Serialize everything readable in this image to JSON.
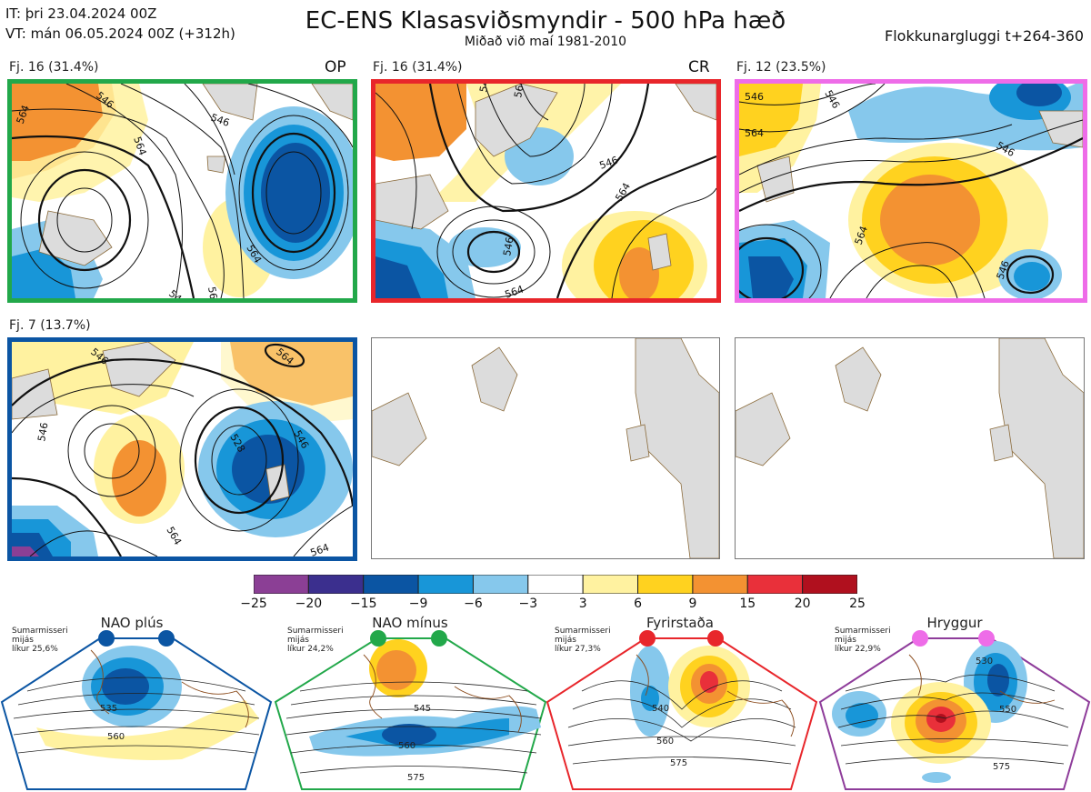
{
  "header": {
    "it_line": "IT: þri 23.04.2024 00Z",
    "vt_line": "VT: mán 06.05.2024 00Z  (+312h)",
    "title": "EC-ENS Klasasviðsmyndir - 500 hPa hæð",
    "subtitle": "Miðað við maí 1981-2010",
    "window": "Flokkunargluggi t+264-360"
  },
  "panels": [
    {
      "label": "Fj. 16 (31.4%)",
      "tag": "OP",
      "border_color": "#22a84a"
    },
    {
      "label": "Fj. 16 (31.4%)",
      "tag": "CR",
      "border_color": "#e8262b"
    },
    {
      "label": "Fj. 12 (23.5%)",
      "tag": "",
      "border_color": "#ee6ce8"
    },
    {
      "label": "Fj. 7 (13.7%)",
      "tag": "",
      "border_color": "#0b55a3"
    },
    {
      "label": "",
      "tag": "",
      "border_color": "#777777"
    },
    {
      "label": "",
      "tag": "",
      "border_color": "#777777"
    }
  ],
  "contour_labels": {
    "p1": [
      "564",
      "546",
      "564",
      "546",
      "564",
      "546",
      "564",
      "564"
    ],
    "p2": [
      "546",
      "564",
      "546",
      "546",
      "564",
      "546",
      "564"
    ],
    "p3": [
      "546",
      "546",
      "564",
      "546",
      "564",
      "546"
    ],
    "p4": [
      "546",
      "564",
      "546",
      "528",
      "564",
      "546",
      "564"
    ]
  },
  "colorbar": {
    "ticks": [
      "−25",
      "−20",
      "−15",
      "−9",
      "−6",
      "−3",
      "3",
      "6",
      "9",
      "15",
      "20",
      "25"
    ],
    "colors": [
      "#8b3f95",
      "#3b2f8e",
      "#0b55a3",
      "#1896d8",
      "#86c8ec",
      "#ffffff",
      "#fff2a0",
      "#ffd21f",
      "#f39232",
      "#e9303a",
      "#b0101e"
    ]
  },
  "regimes": [
    {
      "name": "NAO plús",
      "stats": [
        "Sumarmisseri",
        "mijás",
        "líkur 25,6%"
      ],
      "color": "#0b55a3",
      "contours": [
        "535",
        "560"
      ]
    },
    {
      "name": "NAO mínus",
      "stats": [
        "Sumarmisseri",
        "mijás",
        "líkur 24,2%"
      ],
      "color": "#22a84a",
      "contours": [
        "545",
        "560",
        "575"
      ]
    },
    {
      "name": "Fyrirstaða",
      "stats": [
        "Sumarmisseri",
        "mijás",
        "líkur 27,3%"
      ],
      "color": "#e8262b",
      "contours": [
        "540",
        "560",
        "575"
      ]
    },
    {
      "name": "Hryggur",
      "stats": [
        "Sumarmisseri",
        "mijás",
        "líkur 22,9%"
      ],
      "color": "#8e3c9a",
      "contours": [
        "530",
        "550",
        "575"
      ]
    }
  ],
  "chart_data": {
    "type": "heatmap",
    "title": "EC-ENS Klasasviðsmyndir - 500 hPa hæð",
    "subtitle": "Miðað við maí 1981-2010",
    "colorbar_ticks": [
      -25,
      -20,
      -15,
      -9,
      -6,
      -3,
      3,
      6,
      9,
      15,
      20,
      25
    ],
    "clusters": [
      {
        "label": "Fj. 16 (31.4%)",
        "tag": "OP",
        "members": 16,
        "percent": 31.4
      },
      {
        "label": "Fj. 16 (31.4%)",
        "tag": "CR",
        "members": 16,
        "percent": 31.4
      },
      {
        "label": "Fj. 12 (23.5%)",
        "members": 12,
        "percent": 23.5
      },
      {
        "label": "Fj. 7 (13.7%)",
        "members": 7,
        "percent": 13.7
      }
    ],
    "regimes": [
      {
        "name": "NAO plús",
        "probability": 25.6
      },
      {
        "name": "NAO mínus",
        "probability": 24.2
      },
      {
        "name": "Fyrirstaða",
        "probability": 27.3
      },
      {
        "name": "Hryggur",
        "probability": 22.9
      }
    ]
  }
}
